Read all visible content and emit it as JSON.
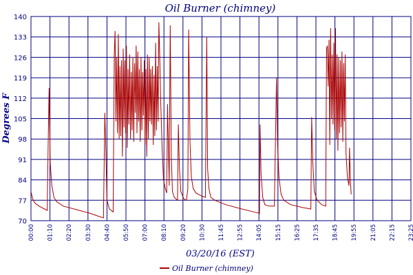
{
  "chart_data": {
    "type": "line",
    "title": "Oil Burner (chimney)",
    "xlabel": "03/20/16 (EST)",
    "ylabel": "Degrees F",
    "ylim": [
      70,
      140
    ],
    "yticks": [
      "70",
      "77",
      "84",
      "91",
      "98",
      "105",
      "112",
      "119",
      "126",
      "133",
      "140"
    ],
    "xlim": [
      "00:00",
      "23:25"
    ],
    "xticks": [
      "00:00",
      "01:10",
      "02:20",
      "03:30",
      "04:40",
      "05:50",
      "07:00",
      "08:10",
      "09:20",
      "10:30",
      "11:45",
      "12:55",
      "14:05",
      "15:15",
      "16:25",
      "17:35",
      "18:45",
      "19:55",
      "21:05",
      "22:15",
      "23:25"
    ],
    "grid": true,
    "legend": "bottom-center",
    "colors": {
      "series": "#aa0000",
      "grid": "#00007f",
      "text": "#00007f"
    },
    "series": [
      {
        "name": "Oil Burner (chimney)",
        "points": [
          [
            "00:00",
            80
          ],
          [
            "00:06",
            77.5
          ],
          [
            "00:15",
            76
          ],
          [
            "00:30",
            75
          ],
          [
            "00:50",
            74
          ],
          [
            "01:00",
            73.5
          ],
          [
            "01:04",
            98
          ],
          [
            "01:07",
            115.5
          ],
          [
            "01:11",
            90
          ],
          [
            "01:17",
            82
          ],
          [
            "01:25",
            78
          ],
          [
            "01:35",
            76.5
          ],
          [
            "02:00",
            75
          ],
          [
            "03:00",
            73.5
          ],
          [
            "03:40",
            72.5
          ],
          [
            "04:10",
            71.5
          ],
          [
            "04:28",
            71
          ],
          [
            "04:33",
            107
          ],
          [
            "04:36",
            98
          ],
          [
            "04:41",
            77
          ],
          [
            "04:50",
            74
          ],
          [
            "05:04",
            73
          ],
          [
            "05:08",
            127
          ],
          [
            "05:11",
            135
          ],
          [
            "05:14",
            104
          ],
          [
            "05:17",
            126
          ],
          [
            "05:20",
            100
          ],
          [
            "05:23",
            134
          ],
          [
            "05:26",
            98
          ],
          [
            "05:29",
            123
          ],
          [
            "05:32",
            99
          ],
          [
            "05:35",
            125
          ],
          [
            "05:38",
            92
          ],
          [
            "05:41",
            129
          ],
          [
            "05:44",
            102
          ],
          [
            "05:47",
            125
          ],
          [
            "05:50",
            100
          ],
          [
            "05:53",
            130
          ],
          [
            "05:56",
            95
          ],
          [
            "05:59",
            122
          ],
          [
            "06:02",
            103
          ],
          [
            "06:05",
            127
          ],
          [
            "06:08",
            98
          ],
          [
            "06:11",
            121
          ],
          [
            "06:14",
            101
          ],
          [
            "06:17",
            126
          ],
          [
            "06:20",
            97
          ],
          [
            "06:23",
            124
          ],
          [
            "06:26",
            107
          ],
          [
            "06:29",
            130
          ],
          [
            "06:32",
            100
          ],
          [
            "06:35",
            128
          ],
          [
            "06:38",
            104
          ],
          [
            "06:41",
            122
          ],
          [
            "06:44",
            97
          ],
          [
            "06:47",
            126
          ],
          [
            "06:50",
            101
          ],
          [
            "06:53",
            121
          ],
          [
            "06:56",
            106
          ],
          [
            "06:59",
            125
          ],
          [
            "07:02",
            96
          ],
          [
            "07:05",
            122
          ],
          [
            "07:08",
            92
          ],
          [
            "07:11",
            127
          ],
          [
            "07:14",
            98
          ],
          [
            "07:17",
            126
          ],
          [
            "07:20",
            104
          ],
          [
            "07:23",
            122
          ],
          [
            "07:26",
            103
          ],
          [
            "07:29",
            123
          ],
          [
            "07:32",
            96
          ],
          [
            "07:35",
            120
          ],
          [
            "07:38",
            99
          ],
          [
            "07:41",
            131
          ],
          [
            "07:44",
            101
          ],
          [
            "07:47",
            123
          ],
          [
            "07:50",
            104
          ],
          [
            "07:53",
            138
          ],
          [
            "07:56",
            127
          ],
          [
            "08:00",
            110
          ],
          [
            "08:05",
            95
          ],
          [
            "08:10",
            84
          ],
          [
            "08:18",
            80.5
          ],
          [
            "08:22",
            79.5
          ],
          [
            "08:25",
            110
          ],
          [
            "08:28",
            96
          ],
          [
            "08:31",
            82
          ],
          [
            "08:35",
            137
          ],
          [
            "08:39",
            92
          ],
          [
            "08:43",
            80
          ],
          [
            "08:50",
            78
          ],
          [
            "09:02",
            77
          ],
          [
            "09:05",
            103
          ],
          [
            "09:09",
            88
          ],
          [
            "09:14",
            80
          ],
          [
            "09:25",
            77.5
          ],
          [
            "09:35",
            77
          ],
          [
            "09:40",
            81
          ],
          [
            "09:43",
            135.5
          ],
          [
            "09:48",
            97
          ],
          [
            "09:53",
            85
          ],
          [
            "10:00",
            81
          ],
          [
            "10:10",
            79.5
          ],
          [
            "10:30",
            78.5
          ],
          [
            "10:45",
            78
          ],
          [
            "10:50",
            133
          ],
          [
            "10:53",
            88
          ],
          [
            "10:58",
            81
          ],
          [
            "11:05",
            78
          ],
          [
            "11:20",
            77
          ],
          [
            "12:00",
            75.5
          ],
          [
            "13:00",
            74
          ],
          [
            "13:45",
            73
          ],
          [
            "14:05",
            72.5
          ],
          [
            "14:07",
            103
          ],
          [
            "14:11",
            86
          ],
          [
            "14:17",
            78
          ],
          [
            "14:25",
            75.5
          ],
          [
            "14:40",
            75
          ],
          [
            "15:00",
            75
          ],
          [
            "15:08",
            119
          ],
          [
            "15:12",
            96
          ],
          [
            "15:17",
            85
          ],
          [
            "15:25",
            79
          ],
          [
            "15:35",
            77
          ],
          [
            "16:00",
            75.5
          ],
          [
            "16:45",
            74.5
          ],
          [
            "17:15",
            74
          ],
          [
            "17:18",
            105.5
          ],
          [
            "17:22",
            90
          ],
          [
            "17:28",
            80
          ],
          [
            "17:38",
            77
          ],
          [
            "17:55",
            75.5
          ],
          [
            "18:10",
            75
          ],
          [
            "18:13",
            129
          ],
          [
            "18:16",
            130
          ],
          [
            "18:19",
            116
          ],
          [
            "18:22",
            132
          ],
          [
            "18:25",
            96
          ],
          [
            "18:28",
            136
          ],
          [
            "18:31",
            105
          ],
          [
            "18:34",
            127
          ],
          [
            "18:37",
            103
          ],
          [
            "18:40",
            131
          ],
          [
            "18:43",
            101
          ],
          [
            "18:46",
            136
          ],
          [
            "18:49",
            98
          ],
          [
            "18:52",
            127
          ],
          [
            "18:55",
            94
          ],
          [
            "18:58",
            126
          ],
          [
            "19:01",
            100
          ],
          [
            "19:04",
            125
          ],
          [
            "19:07",
            102
          ],
          [
            "19:10",
            128
          ],
          [
            "19:13",
            97
          ],
          [
            "19:16",
            124
          ],
          [
            "19:19",
            104
          ],
          [
            "19:22",
            127
          ],
          [
            "19:25",
            93
          ],
          [
            "19:30",
            85
          ],
          [
            "19:36",
            82
          ],
          [
            "19:38",
            95
          ],
          [
            "19:41",
            84
          ],
          [
            "19:44",
            79
          ]
        ]
      }
    ]
  }
}
